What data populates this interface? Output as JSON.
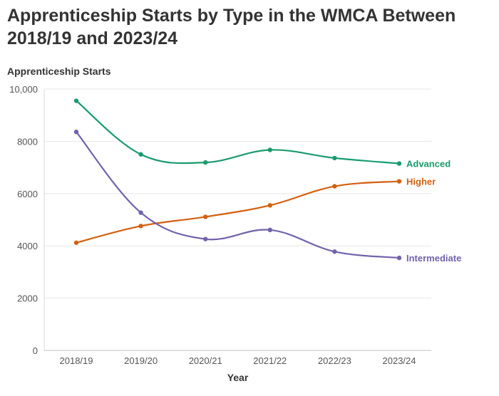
{
  "chart_data": {
    "type": "line",
    "title": "Apprenticeship Starts by Type in the WMCA Between 2018/19 and 2023/24",
    "ylabel": "Apprenticeship Starts",
    "xlabel": "Year",
    "categories": [
      "2018/19",
      "2019/20",
      "2020/21",
      "2021/22",
      "2022/23",
      "2023/24"
    ],
    "ylim": [
      0,
      10000
    ],
    "yticks": [
      "0",
      "2000",
      "4000",
      "6000",
      "8000",
      "10,000"
    ],
    "ytick_values": [
      0,
      2000,
      4000,
      6000,
      8000,
      10000
    ],
    "grid": true,
    "legend": "direct labels at line ends",
    "series": [
      {
        "name": "Advanced",
        "color": "#1a9b6c",
        "values": [
          9550,
          7500,
          7190,
          7670,
          7360,
          7150
        ]
      },
      {
        "name": "Higher",
        "color": "#d4600f",
        "values": [
          4120,
          4760,
          5110,
          5550,
          6280,
          6470
        ]
      },
      {
        "name": "Intermediate",
        "color": "#7262ac",
        "values": [
          8360,
          5270,
          4260,
          4610,
          3780,
          3540
        ]
      }
    ]
  }
}
